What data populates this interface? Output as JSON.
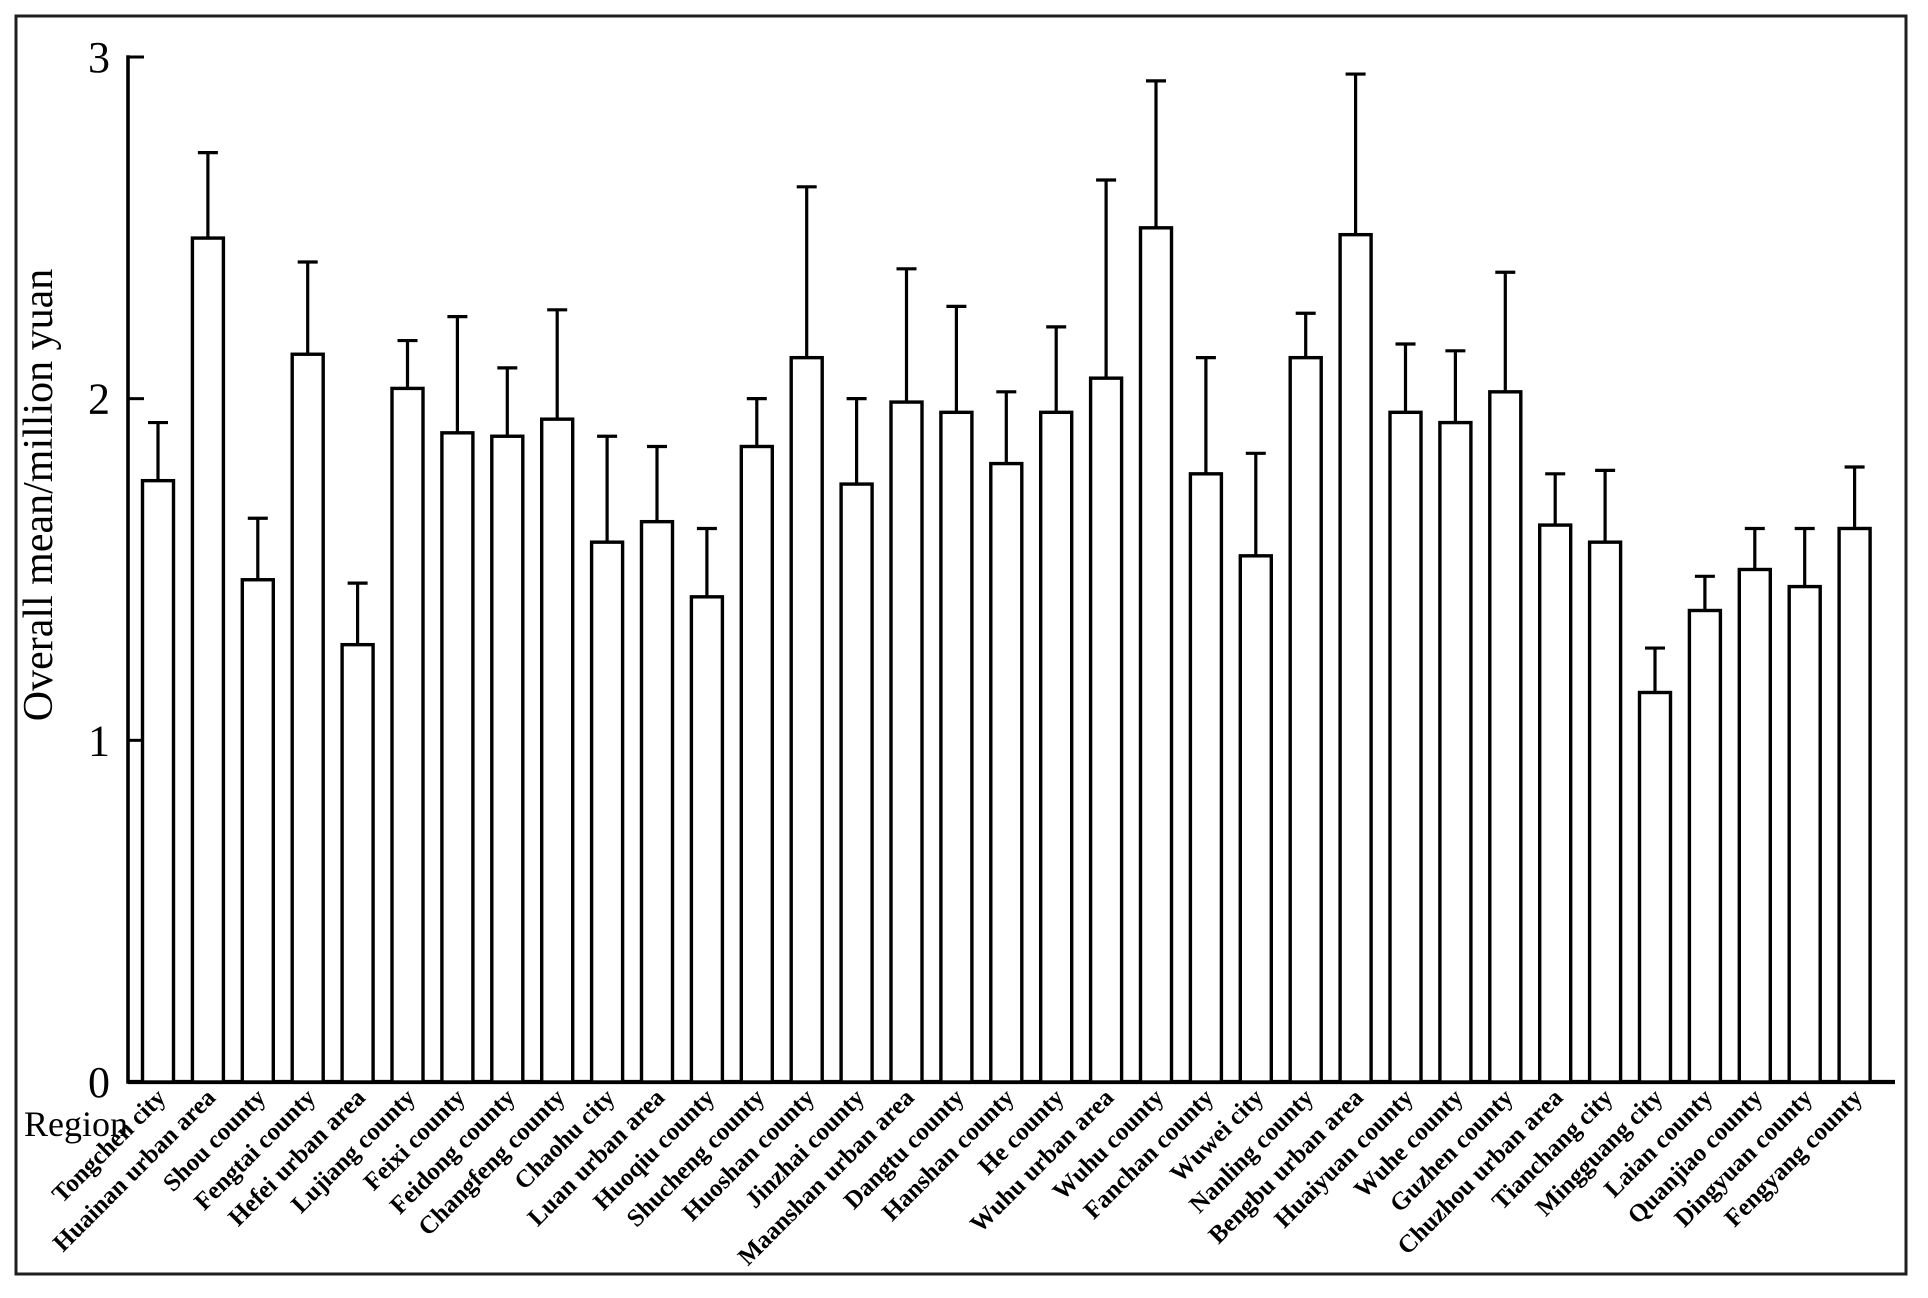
{
  "chart_data": {
    "type": "bar",
    "title": "",
    "xlabel": "Region",
    "ylabel": "Overall mean/million yuan",
    "ylim": [
      0,
      3
    ],
    "yticks": [
      0,
      1,
      2,
      3
    ],
    "grid": false,
    "legend": "none",
    "bar_fill": "#ffffff",
    "bar_stroke": "#000000",
    "error_bars": "upper only",
    "categories": [
      "Tongchen city",
      "Huainan urban area",
      "Shou county",
      "Fengtai county",
      "Hefei urban area",
      "Lujiang county",
      "Feixi county",
      "Feidong county",
      "Changfeng county",
      "Chaohu city",
      "Luan urban area",
      "Huoqiu county",
      "Shucheng county",
      "Huoshan county",
      "Jinzhai county",
      "Maanshan urban area",
      "Dangtu county",
      "Hanshan county",
      "He county",
      "Wuhu urban area",
      "Wuhu county",
      "Fanchan county",
      "Wuwei city",
      "Nanling county",
      "Bengbu urban area",
      "Huaiyuan county",
      "Wuhe county",
      "Guzhen county",
      "Chuzhou urban area",
      "Tianchang city",
      "Mingguang city",
      "Laian county",
      "Quanjiao county",
      "Dingyuan county",
      "Fengyang county"
    ],
    "values": [
      1.76,
      2.47,
      1.47,
      2.13,
      1.28,
      2.03,
      1.9,
      1.89,
      1.94,
      1.58,
      1.64,
      1.42,
      1.86,
      2.12,
      1.75,
      1.99,
      1.96,
      1.81,
      1.96,
      2.06,
      2.5,
      1.78,
      1.54,
      2.12,
      2.48,
      1.96,
      1.93,
      2.02,
      1.63,
      1.58,
      1.14,
      1.38,
      1.5,
      1.45,
      1.62
    ],
    "error_upper": [
      0.17,
      0.25,
      0.18,
      0.27,
      0.18,
      0.14,
      0.34,
      0.2,
      0.32,
      0.31,
      0.22,
      0.2,
      0.14,
      0.5,
      0.25,
      0.39,
      0.31,
      0.21,
      0.25,
      0.58,
      0.43,
      0.34,
      0.3,
      0.13,
      0.47,
      0.2,
      0.21,
      0.35,
      0.15,
      0.21,
      0.13,
      0.1,
      0.12,
      0.17,
      0.18
    ]
  }
}
